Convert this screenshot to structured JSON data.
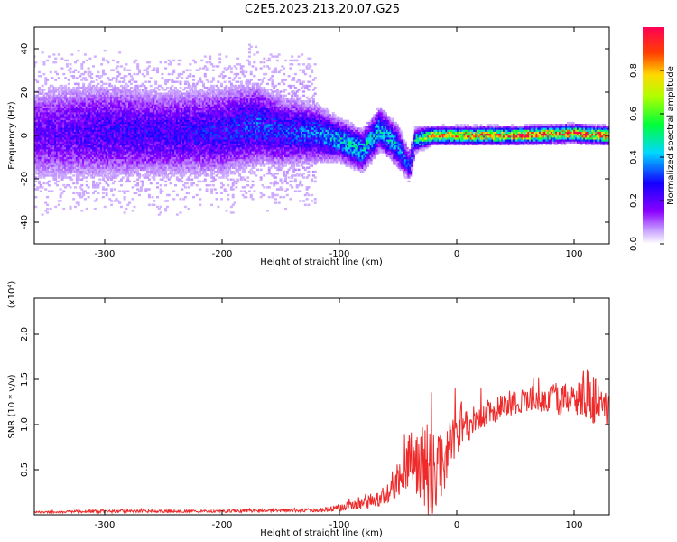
{
  "title": "C2E5.2023.213.20.07.G25",
  "colors": {
    "spectrogram_low": "#e8d8ff",
    "spectrogram_mid": "#7a00ff",
    "snr_line": "#ee2a2a",
    "axis": "#000000"
  },
  "chart_data": [
    {
      "type": "heatmap",
      "xlabel": "Height of straight line (km)",
      "ylabel": "Frequency (Hz)",
      "xlim": [
        -360,
        130
      ],
      "ylim": [
        -50,
        50
      ],
      "xticks": [
        "-300",
        "-200",
        "-100",
        "0",
        "100"
      ],
      "yticks": [
        "-40",
        "-20",
        "0",
        "20",
        "40"
      ],
      "colorbar": {
        "label": "Normalized spectral amplitude",
        "range": [
          0,
          1
        ],
        "ticks": [
          "0.0",
          "0.2",
          "0.4",
          "0.6",
          "0.8"
        ]
      },
      "ridge": [
        {
          "x": -360,
          "f": 1,
          "amp": 0.2,
          "width": 12
        },
        {
          "x": -300,
          "f": 2,
          "amp": 0.25,
          "width": 12
        },
        {
          "x": -250,
          "f": 1,
          "amp": 0.25,
          "width": 11
        },
        {
          "x": -200,
          "f": 2,
          "amp": 0.28,
          "width": 11
        },
        {
          "x": -170,
          "f": 5,
          "amp": 0.32,
          "width": 10
        },
        {
          "x": -150,
          "f": 2,
          "amp": 0.3,
          "width": 9
        },
        {
          "x": -120,
          "f": 1,
          "amp": 0.35,
          "width": 7
        },
        {
          "x": -100,
          "f": -2,
          "amp": 0.45,
          "width": 5
        },
        {
          "x": -80,
          "f": -7,
          "amp": 0.45,
          "width": 5
        },
        {
          "x": -65,
          "f": 3,
          "amp": 0.45,
          "width": 5
        },
        {
          "x": -50,
          "f": -5,
          "amp": 0.4,
          "width": 5
        },
        {
          "x": -40,
          "f": -14,
          "amp": 0.3,
          "width": 4
        },
        {
          "x": -35,
          "f": -2,
          "amp": 0.45,
          "width": 3
        },
        {
          "x": -20,
          "f": 0,
          "amp": 0.8,
          "width": 2
        },
        {
          "x": 0,
          "f": 0,
          "amp": 0.9,
          "width": 2
        },
        {
          "x": 50,
          "f": 0,
          "amp": 0.92,
          "width": 2
        },
        {
          "x": 100,
          "f": 1,
          "amp": 0.95,
          "width": 2
        },
        {
          "x": 130,
          "f": 0,
          "amp": 0.9,
          "width": 2
        }
      ]
    },
    {
      "type": "line",
      "xlabel": "Height of straight line (km)",
      "ylabel": "SNR (10 * v/v)",
      "multiplier": "(x10⁴)",
      "xlim": [
        -360,
        130
      ],
      "ylim": [
        0,
        2.4
      ],
      "xticks": [
        "-300",
        "-200",
        "-100",
        "0",
        "100"
      ],
      "yticks": [
        "0.5",
        "1.0",
        "1.5",
        "2.0"
      ],
      "series": [
        {
          "x": [
            -360,
            -300,
            -250,
            -200,
            -150,
            -120,
            -100,
            -80,
            -60,
            -50,
            -40,
            -30,
            -20,
            -10,
            0,
            10,
            20,
            30,
            40,
            60,
            80,
            100,
            110,
            120,
            130
          ],
          "y": [
            0.03,
            0.04,
            0.04,
            0.04,
            0.05,
            0.05,
            0.08,
            0.12,
            0.22,
            0.4,
            0.6,
            0.52,
            0.45,
            0.65,
            0.88,
            1.0,
            1.1,
            1.15,
            1.22,
            1.28,
            1.3,
            1.25,
            1.3,
            1.25,
            1.2
          ],
          "spread": [
            0.01,
            0.02,
            0.015,
            0.015,
            0.02,
            0.02,
            0.04,
            0.06,
            0.12,
            0.22,
            0.35,
            0.45,
            0.5,
            0.35,
            0.25,
            0.2,
            0.16,
            0.15,
            0.14,
            0.14,
            0.16,
            0.2,
            0.35,
            0.25,
            0.2
          ]
        }
      ]
    }
  ]
}
